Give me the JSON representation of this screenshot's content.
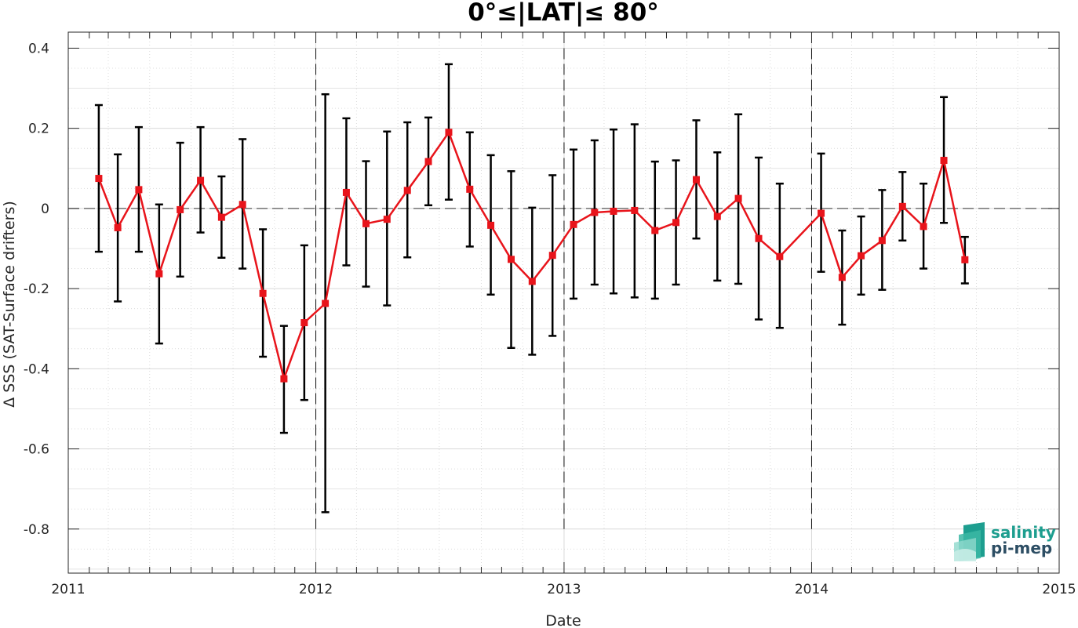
{
  "chart_data": {
    "type": "line",
    "title": "0°≤|LAT|≤ 80°",
    "xlabel": "Date",
    "ylabel": "Δ SSS (SAT-Surface drifters)",
    "xlim": [
      "2011-01-01",
      "2015-01-01"
    ],
    "ylim": [
      -0.91,
      0.44
    ],
    "x_ticks": [
      "2011",
      "2012",
      "2013",
      "2014",
      "2015"
    ],
    "y_ticks": [
      0.4,
      0.2,
      0,
      -0.2,
      -0.4,
      -0.6,
      -0.8
    ],
    "y_tick_labels": [
      "0.4",
      "0.2",
      "0",
      "-0.2",
      "-0.4",
      "-0.6",
      "-0.8"
    ],
    "grid": true,
    "reference_line_y": 0,
    "year_boundary_lines": [
      "2012-01-01",
      "2013-01-01",
      "2014-01-01"
    ],
    "colors": {
      "line": "#e8141b",
      "marker": "#e8141b",
      "errorbar": "#000000",
      "grid": "#d9d9d9"
    },
    "series": [
      {
        "x": [
          "2011-02-15",
          "2011-03-15",
          "2011-04-15",
          "2011-05-15",
          "2011-06-15",
          "2011-07-15",
          "2011-08-15",
          "2011-09-15",
          "2011-10-15",
          "2011-11-15",
          "2011-12-15",
          "2012-01-15",
          "2012-02-15",
          "2012-03-15",
          "2012-04-15",
          "2012-05-15",
          "2012-06-15",
          "2012-07-15",
          "2012-08-15",
          "2012-09-15",
          "2012-10-15",
          "2012-11-15",
          "2012-12-15",
          "2013-01-15",
          "2013-02-15",
          "2013-03-15",
          "2013-04-15",
          "2013-05-15",
          "2013-06-15",
          "2013-07-15",
          "2013-08-15",
          "2013-09-15",
          "2013-10-15",
          "2013-11-15",
          "2014-01-15",
          "2014-02-15",
          "2014-03-15",
          "2014-04-15",
          "2014-05-15",
          "2014-06-15",
          "2014-07-15",
          "2014-08-15"
        ],
        "values": [
          0.075,
          -0.048,
          0.047,
          -0.163,
          -0.003,
          0.07,
          -0.022,
          0.01,
          -0.212,
          -0.425,
          -0.285,
          -0.237,
          0.04,
          -0.038,
          -0.027,
          0.045,
          0.117,
          0.19,
          0.048,
          -0.042,
          -0.127,
          -0.182,
          -0.117,
          -0.04,
          -0.01,
          -0.007,
          -0.005,
          -0.055,
          -0.035,
          0.072,
          -0.02,
          0.025,
          -0.075,
          -0.12,
          -0.012,
          -0.172,
          -0.118,
          -0.08,
          0.005,
          -0.045,
          0.12,
          -0.128
        ],
        "err_upper": [
          0.258,
          0.135,
          0.203,
          0.01,
          0.164,
          0.203,
          0.08,
          0.173,
          -0.052,
          -0.293,
          -0.092,
          0.285,
          0.225,
          0.118,
          0.192,
          0.215,
          0.227,
          0.36,
          0.19,
          0.133,
          0.093,
          0.002,
          0.083,
          0.147,
          0.17,
          0.197,
          0.21,
          0.117,
          0.12,
          0.22,
          0.14,
          0.235,
          0.127,
          0.062,
          0.137,
          -0.055,
          -0.02,
          0.046,
          0.091,
          0.062,
          0.278,
          -0.071
        ],
        "err_lower": [
          -0.108,
          -0.232,
          -0.108,
          -0.337,
          -0.17,
          -0.06,
          -0.123,
          -0.15,
          -0.37,
          -0.56,
          -0.478,
          -0.758,
          -0.142,
          -0.195,
          -0.242,
          -0.122,
          0.008,
          0.022,
          -0.095,
          -0.215,
          -0.348,
          -0.365,
          -0.318,
          -0.225,
          -0.19,
          -0.212,
          -0.222,
          -0.225,
          -0.19,
          -0.075,
          -0.18,
          -0.188,
          -0.277,
          -0.298,
          -0.158,
          -0.29,
          -0.215,
          -0.203,
          -0.08,
          -0.15,
          -0.036,
          -0.187
        ]
      }
    ]
  },
  "logo": {
    "line1": "salinity",
    "line2": "pi-mep"
  }
}
